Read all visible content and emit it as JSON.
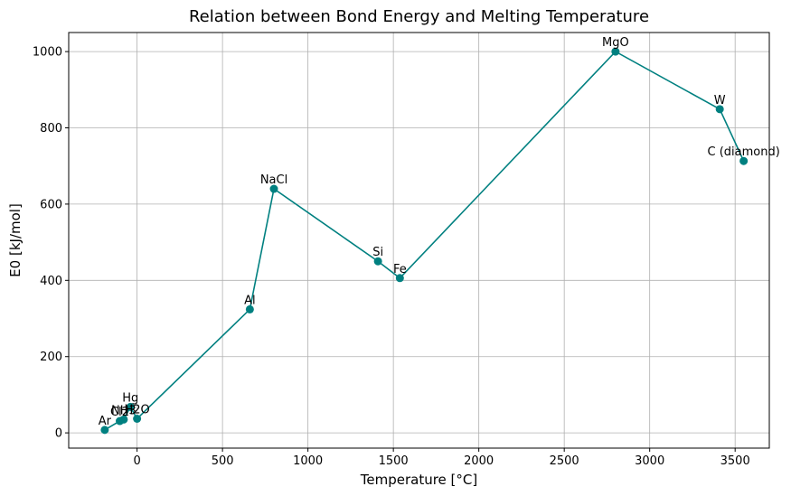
{
  "chart_data": {
    "type": "line",
    "title": "Relation between Bond Energy and Melting Temperature",
    "xlabel": "Temperature [°C]",
    "ylabel": "E0 [kJ/mol]",
    "xlim": [
      -400,
      3700
    ],
    "ylim": [
      -40,
      1050
    ],
    "xticks": [
      0,
      500,
      1000,
      1500,
      2000,
      2500,
      3000,
      3500
    ],
    "yticks": [
      0,
      200,
      400,
      600,
      800,
      1000
    ],
    "grid": true,
    "line_color": "#008080",
    "series": [
      {
        "points": [
          {
            "label": "Ar",
            "x": -189,
            "y": 7.7
          },
          {
            "label": "Cl2",
            "x": -101,
            "y": 31
          },
          {
            "label": "NH3",
            "x": -78,
            "y": 35
          },
          {
            "label": "Hg",
            "x": -39,
            "y": 68
          },
          {
            "label": "H2O",
            "x": 0,
            "y": 37
          },
          {
            "label": "Al",
            "x": 660,
            "y": 324
          },
          {
            "label": "NaCl",
            "x": 801,
            "y": 640
          },
          {
            "label": "Si",
            "x": 1410,
            "y": 450
          },
          {
            "label": "Fe",
            "x": 1538,
            "y": 406
          },
          {
            "label": "MgO",
            "x": 2800,
            "y": 1000
          },
          {
            "label": "W",
            "x": 3410,
            "y": 849
          },
          {
            "label": "C (diamond)",
            "x": 3550,
            "y": 713
          }
        ]
      }
    ]
  }
}
